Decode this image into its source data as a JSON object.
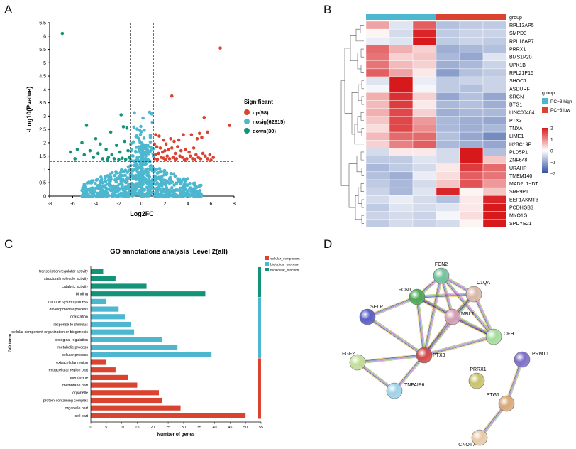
{
  "panels": {
    "a": "A",
    "b": "B",
    "c": "C",
    "d": "D"
  },
  "chart_data": [
    {
      "type": "scatter",
      "title": "",
      "xlabel": "Log2FC",
      "ylabel": "-Log10(Pvalue)",
      "xlim": [
        -8,
        8
      ],
      "ylim": [
        0,
        6.5
      ],
      "xticks": [
        "-8",
        "-6",
        "-4",
        "-2",
        "0",
        "2",
        "4",
        "6",
        "8"
      ],
      "yticks": [
        "0",
        "0.5",
        "1",
        "1.5",
        "2",
        "2.5",
        "3",
        "3.5",
        "4",
        "4.5",
        "5",
        "5.5",
        "6",
        "6.5"
      ],
      "threshold_x": [
        -1,
        1
      ],
      "threshold_y": 1.3,
      "legend_title": "Significant",
      "legend_position": "right",
      "series": [
        {
          "name": "up(58)",
          "color": "#d9432f",
          "points": [
            [
              6.8,
              5.55
            ],
            [
              7.6,
              2.65
            ],
            [
              2.6,
              3.75
            ],
            [
              5.4,
              2.95
            ],
            [
              5.7,
              2.4
            ],
            [
              5.2,
              2.2
            ],
            [
              1.2,
              2.3
            ],
            [
              1.5,
              2.25
            ],
            [
              1.9,
              2.1
            ],
            [
              2.1,
              1.95
            ],
            [
              2.5,
              2.15
            ],
            [
              2.8,
              2.05
            ],
            [
              3.2,
              2.1
            ],
            [
              3.6,
              2.3
            ],
            [
              4.3,
              2.3
            ],
            [
              4.8,
              2.15
            ],
            [
              5.0,
              2.35
            ],
            [
              1.1,
              1.95
            ],
            [
              1.3,
              1.85
            ],
            [
              1.6,
              1.8
            ],
            [
              1.8,
              1.65
            ],
            [
              2.0,
              1.7
            ],
            [
              2.3,
              1.75
            ],
            [
              2.6,
              1.8
            ],
            [
              2.9,
              1.6
            ],
            [
              3.1,
              1.85
            ],
            [
              3.4,
              1.7
            ],
            [
              3.8,
              1.75
            ],
            [
              4.1,
              1.65
            ],
            [
              4.5,
              1.8
            ],
            [
              4.7,
              1.55
            ],
            [
              5.3,
              1.6
            ],
            [
              1.2,
              1.55
            ],
            [
              1.45,
              1.6
            ],
            [
              1.7,
              1.45
            ],
            [
              2.2,
              1.5
            ],
            [
              2.4,
              1.4
            ],
            [
              2.7,
              1.45
            ],
            [
              3.0,
              1.4
            ],
            [
              3.3,
              1.5
            ],
            [
              3.5,
              1.45
            ],
            [
              3.9,
              1.4
            ],
            [
              4.2,
              1.5
            ],
            [
              4.4,
              1.4
            ],
            [
              4.9,
              1.45
            ],
            [
              5.1,
              1.4
            ],
            [
              5.5,
              1.5
            ],
            [
              5.9,
              1.55
            ],
            [
              6.2,
              1.45
            ],
            [
              1.1,
              1.4
            ],
            [
              1.35,
              1.38
            ],
            [
              1.9,
              1.42
            ],
            [
              2.05,
              1.36
            ],
            [
              2.9,
              1.38
            ],
            [
              3.7,
              1.36
            ],
            [
              4.6,
              1.38
            ],
            [
              5.7,
              1.4
            ],
            [
              6.0,
              1.35
            ]
          ]
        },
        {
          "name": "nosig(62615)",
          "color": "#4cb7cf",
          "points": []
        },
        {
          "name": "down(30)",
          "color": "#139478",
          "points": [
            [
              -6.9,
              6.1
            ],
            [
              -1.8,
              3.05
            ],
            [
              -4.8,
              2.65
            ],
            [
              -1.6,
              2.6
            ],
            [
              -2.7,
              2.4
            ],
            [
              -1.3,
              2.55
            ],
            [
              -5.2,
              2.0
            ],
            [
              -4.0,
              2.15
            ],
            [
              -3.6,
              1.95
            ],
            [
              -2.2,
              1.9
            ],
            [
              -1.5,
              2.05
            ],
            [
              -6.2,
              1.65
            ],
            [
              -5.6,
              1.75
            ],
            [
              -5.0,
              1.55
            ],
            [
              -4.5,
              1.7
            ],
            [
              -3.8,
              1.6
            ],
            [
              -3.1,
              1.75
            ],
            [
              -2.6,
              1.55
            ],
            [
              -1.9,
              1.65
            ],
            [
              -1.2,
              1.7
            ],
            [
              -5.8,
              1.4
            ],
            [
              -4.2,
              1.45
            ],
            [
              -3.4,
              1.4
            ],
            [
              -2.9,
              1.45
            ],
            [
              -2.4,
              1.4
            ],
            [
              -1.7,
              1.42
            ],
            [
              -1.4,
              1.38
            ],
            [
              -1.1,
              1.45
            ],
            [
              -3.0,
              1.36
            ],
            [
              -2.0,
              1.37
            ]
          ]
        }
      ]
    },
    {
      "type": "heatmap",
      "annotation_label": "group",
      "legend_title": "group",
      "groups": [
        {
          "name": "PC−3 high",
          "color": "#4cb7cf"
        },
        {
          "name": "PC−3 low",
          "color": "#d9432f"
        }
      ],
      "color_scale": {
        "min": -2,
        "max": 2,
        "ticks": [
          "2",
          "1",
          "0",
          "−1",
          "−2"
        ],
        "low": "#2a4ea0",
        "mid": "#ffffff",
        "high": "#d7191c"
      },
      "columns": [
        "PC−3 high",
        "PC−3 high",
        "PC−3 high",
        "PC−3 low",
        "PC−3 low",
        "PC−3 low"
      ],
      "rows": [
        {
          "gene": "RPL13AP5",
          "values": [
            0.8,
            -0.3,
            1.4,
            -0.7,
            -0.6,
            -0.6
          ]
        },
        {
          "gene": "SMPD3",
          "values": [
            0.1,
            -0.4,
            1.9,
            -0.6,
            -0.5,
            -0.5
          ]
        },
        {
          "gene": "RPL18AP7",
          "values": [
            -0.2,
            -0.3,
            2.2,
            -0.6,
            -0.5,
            -0.6
          ]
        },
        {
          "gene": "PRRX1",
          "values": [
            1.3,
            0.7,
            0.4,
            -0.9,
            -0.8,
            -0.7
          ]
        },
        {
          "gene": "BMS1P20",
          "values": [
            1.2,
            0.4,
            0.5,
            -0.8,
            -1.0,
            -0.3
          ]
        },
        {
          "gene": "UPK1B",
          "values": [
            1.2,
            0.6,
            0.4,
            -0.9,
            -0.8,
            -0.5
          ]
        },
        {
          "gene": "RPL21P16",
          "values": [
            1.4,
            0.8,
            0.2,
            -1.1,
            -0.7,
            -0.6
          ]
        },
        {
          "gene": "SHOC1",
          "values": [
            -0.3,
            2.1,
            -0.2,
            -0.6,
            -0.5,
            -0.5
          ]
        },
        {
          "gene": "ASDURF",
          "values": [
            -0.1,
            2.1,
            -0.1,
            -0.6,
            -0.7,
            -0.5
          ]
        },
        {
          "gene": "SRGN",
          "values": [
            0.7,
            1.8,
            0.4,
            -1.0,
            -0.7,
            -1.0
          ]
        },
        {
          "gene": "BTG1",
          "values": [
            0.6,
            1.7,
            0.2,
            -0.8,
            -0.7,
            -0.9
          ]
        },
        {
          "gene": "LINC00484",
          "values": [
            0.7,
            1.6,
            0.4,
            -0.9,
            -0.8,
            -0.8
          ]
        },
        {
          "gene": "PTX3",
          "values": [
            0.5,
            1.6,
            0.9,
            -0.8,
            -0.9,
            -1.0
          ]
        },
        {
          "gene": "TNXA",
          "values": [
            0.3,
            1.6,
            1.0,
            -0.8,
            -0.9,
            -0.8
          ]
        },
        {
          "gene": "LIME1",
          "values": [
            0.6,
            1.3,
            1.3,
            -0.7,
            -1.0,
            -1.3
          ]
        },
        {
          "gene": "H2BC19P",
          "values": [
            0.4,
            1.1,
            1.4,
            -0.8,
            -0.9,
            -1.0
          ]
        },
        {
          "gene": "PLD5P1",
          "values": [
            -0.4,
            0.2,
            0.2,
            -0.4,
            2.0,
            -0.7
          ]
        },
        {
          "gene": "ZNF648",
          "values": [
            -0.6,
            -0.6,
            -0.3,
            -0.4,
            2.0,
            0.5
          ]
        },
        {
          "gene": "URAHP",
          "values": [
            -0.8,
            -0.6,
            -0.4,
            0.2,
            1.7,
            1.3
          ]
        },
        {
          "gene": "TMEM140",
          "values": [
            -0.7,
            -0.9,
            -0.2,
            0.3,
            1.4,
            1.2
          ]
        },
        {
          "gene": "MAD2L1−DT",
          "values": [
            -0.6,
            -0.8,
            -0.4,
            0.5,
            1.5,
            0.9
          ]
        },
        {
          "gene": "SRP9P1",
          "values": [
            -0.5,
            -0.8,
            -0.3,
            1.9,
            0.1,
            0.5
          ]
        },
        {
          "gene": "EEF1AKMT3",
          "values": [
            -0.4,
            -0.2,
            -0.4,
            -0.7,
            0.2,
            1.9
          ]
        },
        {
          "gene": "PCDHGB3",
          "values": [
            -0.6,
            -0.3,
            -0.4,
            -0.3,
            0.2,
            2.0
          ]
        },
        {
          "gene": "MYO1G",
          "values": [
            -0.5,
            -0.4,
            -0.5,
            -0.1,
            0.3,
            2.1
          ]
        },
        {
          "gene": "SPDYE21",
          "values": [
            -0.6,
            -0.4,
            -0.5,
            -0.4,
            0.1,
            2.1
          ]
        }
      ]
    },
    {
      "type": "bar",
      "orientation": "horizontal",
      "title": "GO annotations analysis_Level 2(all)",
      "xlabel": "Number of genes",
      "ylabel": "GO term",
      "xlim": [
        0,
        55
      ],
      "xticks": [
        "0",
        "5",
        "10",
        "15",
        "20",
        "25",
        "30",
        "35",
        "40",
        "45",
        "50",
        "55"
      ],
      "legend_position": "top-right",
      "series": [
        {
          "name": "cellular_component",
          "color": "#d9432f"
        },
        {
          "name": "biological_process",
          "color": "#4cb7cf"
        },
        {
          "name": "molecular_function",
          "color": "#139478"
        }
      ],
      "bars": [
        {
          "label": "transcription regulator activity",
          "value": 4,
          "series": 2
        },
        {
          "label": "structural molecule activity",
          "value": 8,
          "series": 2
        },
        {
          "label": "catalytic activity",
          "value": 18,
          "series": 2
        },
        {
          "label": "binding",
          "value": 37,
          "series": 2
        },
        {
          "label": "immune system process",
          "value": 5,
          "series": 1
        },
        {
          "label": "developmental process",
          "value": 9,
          "series": 1
        },
        {
          "label": "localization",
          "value": 11,
          "series": 1
        },
        {
          "label": "response to stimulus",
          "value": 13,
          "series": 1
        },
        {
          "label": "cellular component organization or biogenesis",
          "value": 14,
          "series": 1
        },
        {
          "label": "biological regulation",
          "value": 23,
          "series": 1
        },
        {
          "label": "metabolic process",
          "value": 28,
          "series": 1
        },
        {
          "label": "cellular process",
          "value": 39,
          "series": 1
        },
        {
          "label": "extracellular region",
          "value": 5,
          "series": 0
        },
        {
          "label": "extracellular region part",
          "value": 8,
          "series": 0
        },
        {
          "label": "membrane",
          "value": 12,
          "series": 0
        },
        {
          "label": "membrane part",
          "value": 15,
          "series": 0
        },
        {
          "label": "organelle",
          "value": 22,
          "series": 0
        },
        {
          "label": "protein-containing complex",
          "value": 23,
          "series": 0
        },
        {
          "label": "organelle part",
          "value": 29,
          "series": 0
        },
        {
          "label": "cell part",
          "value": 50,
          "series": 0
        }
      ]
    }
  ],
  "network": {
    "nodes": [
      {
        "id": "FCN2",
        "color": "#74c49f"
      },
      {
        "id": "C1QA",
        "color": "#d9b8a8"
      },
      {
        "id": "FCN1",
        "color": "#4fa85a"
      },
      {
        "id": "MBL2",
        "color": "#d49fb6"
      },
      {
        "id": "SELP",
        "color": "#5a5fc4"
      },
      {
        "id": "CFH",
        "color": "#a6dc9c"
      },
      {
        "id": "PTX3",
        "color": "#d24a4a"
      },
      {
        "id": "FGF2",
        "color": "#c3de9a"
      },
      {
        "id": "TNFAIP6",
        "color": "#9fd2e9"
      },
      {
        "id": "PRRX1",
        "color": "#c9c26c"
      },
      {
        "id": "PRMT1",
        "color": "#7e6fc8"
      },
      {
        "id": "BTG1",
        "color": "#d9a97a"
      },
      {
        "id": "CNOT7",
        "color": "#e6c9a8"
      }
    ],
    "edges": [
      [
        "FCN2",
        "FCN1"
      ],
      [
        "FCN2",
        "C1QA"
      ],
      [
        "FCN2",
        "MBL2"
      ],
      [
        "FCN2",
        "PTX3"
      ],
      [
        "FCN2",
        "CFH"
      ],
      [
        "FCN1",
        "C1QA"
      ],
      [
        "FCN1",
        "MBL2"
      ],
      [
        "FCN1",
        "PTX3"
      ],
      [
        "FCN1",
        "SELP"
      ],
      [
        "FCN1",
        "CFH"
      ],
      [
        "C1QA",
        "MBL2"
      ],
      [
        "C1QA",
        "PTX3"
      ],
      [
        "C1QA",
        "CFH"
      ],
      [
        "MBL2",
        "PTX3"
      ],
      [
        "MBL2",
        "CFH"
      ],
      [
        "SELP",
        "PTX3"
      ],
      [
        "PTX3",
        "CFH"
      ],
      [
        "PTX3",
        "FGF2"
      ],
      [
        "PTX3",
        "TNFAIP6"
      ],
      [
        "FGF2",
        "TNFAIP6"
      ],
      [
        "PRMT1",
        "BTG1"
      ],
      [
        "BTG1",
        "CNOT7"
      ]
    ]
  }
}
